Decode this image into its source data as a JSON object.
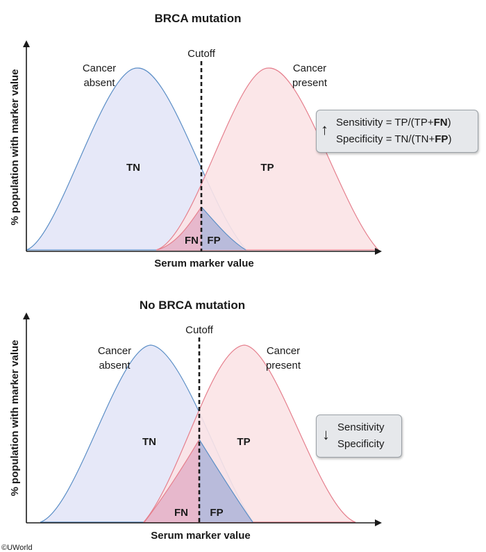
{
  "panels": [
    {
      "title": "BRCA mutation",
      "cutoff_label": "Cutoff",
      "absent_label": [
        "Cancer",
        "absent"
      ],
      "present_label": [
        "Cancer",
        "present"
      ],
      "regions": {
        "tn": "TN",
        "tp": "TP",
        "fn": "FN",
        "fp": "FP"
      },
      "x_axis_label": "Serum marker value",
      "y_axis_label": "% population with marker value",
      "box": {
        "arrow_icon": "arrow-up-icon",
        "arrow": "↑",
        "line1": {
          "pre": "Sensitivity = TP/(TP+",
          "bold": "FN",
          "post": ")"
        },
        "line2": {
          "pre": "Specificity = TN/(TN+",
          "bold": "FP",
          "post": ")"
        }
      }
    },
    {
      "title": "No BRCA mutation",
      "cutoff_label": "Cutoff",
      "absent_label": [
        "Cancer",
        "absent"
      ],
      "present_label": [
        "Cancer",
        "present"
      ],
      "regions": {
        "tn": "TN",
        "tp": "TP",
        "fn": "FN",
        "fp": "FP"
      },
      "x_axis_label": "Serum marker value",
      "y_axis_label": "% population with marker value",
      "box": {
        "arrow_icon": "arrow-down-icon",
        "arrow": "↓",
        "line1": {
          "pre": "Sensitivity",
          "bold": "",
          "post": ""
        },
        "line2": {
          "pre": "Specificity",
          "bold": "",
          "post": ""
        }
      }
    }
  ],
  "credit": "©UWorld",
  "colors": {
    "absent_fill": "#e6e8f8",
    "absent_stroke": "#5b8ec6",
    "present_fill": "#fbe3e6",
    "present_stroke": "#e57f8d",
    "fn_fill": "#e7b8cc",
    "fp_fill": "#b9bbdb"
  }
}
